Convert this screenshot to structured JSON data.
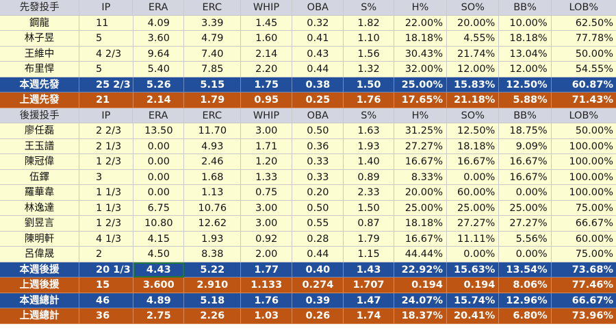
{
  "starters_header": [
    "先發投手",
    "IP",
    "ERA",
    "ERC",
    "WHIP",
    "OBA",
    "S%",
    "H%",
    "SO%",
    "BB%",
    "LOB%"
  ],
  "starters": [
    [
      "鋼龍",
      "11",
      "4.09",
      "3.39",
      "1.45",
      "0.32",
      "1.82",
      "22.00%",
      "20.00%",
      "10.00%",
      "62.50%"
    ],
    [
      "林子昱",
      "5",
      "3.60",
      "4.79",
      "1.60",
      "0.41",
      "1.10",
      "18.18%",
      "4.55%",
      "18.18%",
      "77.78%"
    ],
    [
      "王維中",
      "4 2/3",
      "9.64",
      "7.40",
      "2.14",
      "0.43",
      "1.56",
      "30.43%",
      "21.74%",
      "13.04%",
      "50.00%"
    ],
    [
      "布里悍",
      "5",
      "5.40",
      "7.85",
      "2.20",
      "0.44",
      "1.32",
      "32.00%",
      "12.00%",
      "12.00%",
      "54.55%"
    ]
  ],
  "starters_this_week": [
    "本週先發",
    "25 2/3",
    "5.26",
    "5.15",
    "1.75",
    "0.38",
    "1.50",
    "25.00%",
    "15.83%",
    "12.50%",
    "60.87%"
  ],
  "starters_last_week": [
    "上週先發",
    "21",
    "2.14",
    "1.79",
    "0.95",
    "0.25",
    "1.76",
    "17.65%",
    "21.18%",
    "5.88%",
    "71.43%"
  ],
  "relievers_header": [
    "後援投手",
    "IP",
    "ERA",
    "ERC",
    "WHIP",
    "OBA",
    "S%",
    "H%",
    "SO%",
    "BB%",
    "LOB%"
  ],
  "relievers": [
    [
      "廖任磊",
      "2 2/3",
      "13.50",
      "11.70",
      "3.00",
      "0.50",
      "1.63",
      "31.25%",
      "12.50%",
      "18.75%",
      "50.00%"
    ],
    [
      "王玉譜",
      "2 1/3",
      "0.00",
      "4.93",
      "1.71",
      "0.36",
      "1.93",
      "27.27%",
      "18.18%",
      "9.09%",
      "100.00%"
    ],
    [
      "陳冠偉",
      "1 2/3",
      "0.00",
      "2.46",
      "1.20",
      "0.33",
      "1.40",
      "16.67%",
      "16.67%",
      "16.67%",
      "100.00%"
    ],
    [
      "伍鐸",
      "3",
      "0.00",
      "1.68",
      "1.33",
      "0.33",
      "0.89",
      "8.33%",
      "0.00%",
      "16.67%",
      "100.00%"
    ],
    [
      "羅華韋",
      "1 1/3",
      "0.00",
      "1.13",
      "0.75",
      "0.20",
      "2.33",
      "20.00%",
      "60.00%",
      "0.00%",
      "100.00%"
    ],
    [
      "林逸達",
      "1 1/3",
      "6.75",
      "10.76",
      "3.00",
      "0.50",
      "1.50",
      "25.00%",
      "25.00%",
      "25.00%",
      "75.00%"
    ],
    [
      "劉昱言",
      "1 2/3",
      "10.80",
      "12.62",
      "3.00",
      "0.55",
      "0.87",
      "18.18%",
      "27.27%",
      "27.27%",
      "66.67%"
    ],
    [
      "陳明軒",
      "4 1/3",
      "4.15",
      "1.93",
      "0.92",
      "0.28",
      "1.79",
      "16.67%",
      "11.11%",
      "5.56%",
      "60.00%"
    ],
    [
      "呂偉晟",
      "2",
      "4.50",
      "8.38",
      "2.00",
      "0.44",
      "1.15",
      "44.44%",
      "0.00%",
      "0.00%",
      "75.00%"
    ]
  ],
  "relievers_this_week": [
    "本週後援",
    "20 1/3",
    "4.43",
    "5.22",
    "1.77",
    "0.40",
    "1.43",
    "22.92%",
    "15.63%",
    "13.54%",
    "73.68%"
  ],
  "relievers_last_week": [
    "上週後援",
    "15",
    "3.600",
    "2.910",
    "1.133",
    "0.274",
    "1.707",
    "0.194",
    "0.194",
    "8.06%",
    "77.46%"
  ],
  "total_this_week": [
    "本週總計",
    "46",
    "4.89",
    "5.18",
    "1.76",
    "0.39",
    "1.47",
    "24.07%",
    "15.74%",
    "12.96%",
    "66.67%"
  ],
  "total_last_week": [
    "上週總計",
    "36",
    "2.75",
    "2.26",
    "1.03",
    "0.26",
    "1.74",
    "18.37%",
    "20.41%",
    "6.80%",
    "73.96%"
  ],
  "colors": {
    "header_bg": "#d3d6e0",
    "player_bg": "#fdfdd2",
    "this_week_bg": "#214f9c",
    "last_week_bg": "#bf5512",
    "selection": "#1f7a3a"
  }
}
